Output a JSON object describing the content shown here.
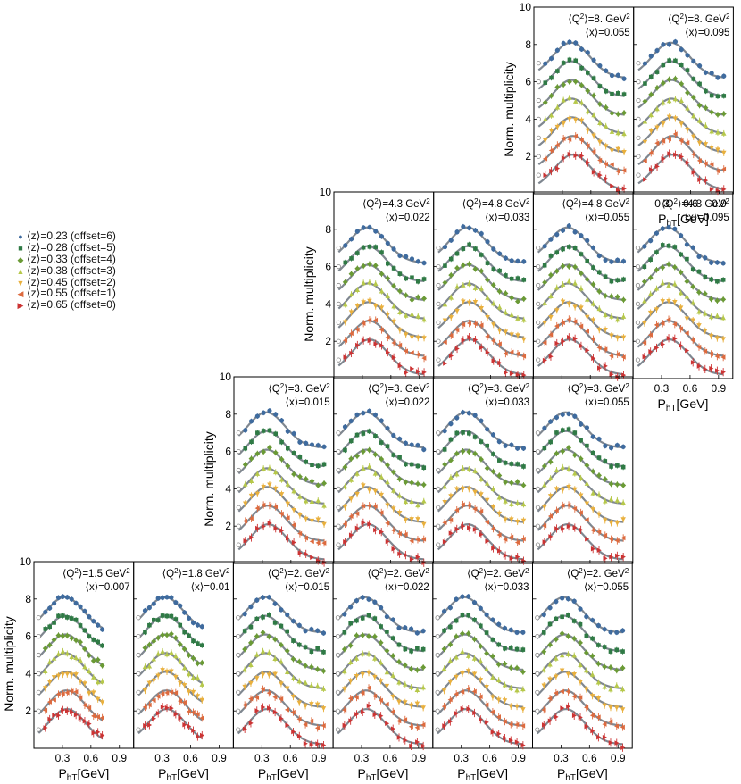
{
  "chart_data": {
    "type": "scatter",
    "description_rows": "Grid of normalized hadron multiplicity panels vs PhT in bins of <Q2> and <x>; each panel shows 7 <z> bins offset vertically with fit curves",
    "y_axis": {
      "label": "Norm. multiplicity",
      "ticks": [
        2,
        4,
        6,
        8,
        10
      ],
      "range": [
        0,
        10
      ]
    },
    "x_axis": {
      "label": "P_hT[GeV]",
      "label_main": "P",
      "label_sub": "hT",
      "label_rest": "[GeV]",
      "ticks": [
        0.3,
        0.6,
        0.9
      ],
      "tick_labels": [
        "0.3",
        "0.6",
        "0.9"
      ],
      "range": [
        0,
        1.05
      ]
    },
    "legend_placement": "left",
    "series": [
      {
        "name": "⟨z⟩=0.23 (offset=6)",
        "z": 0.23,
        "offset": 6,
        "color": "#3f6b9e",
        "marker": "circle"
      },
      {
        "name": "⟨z⟩=0.28 (offset=5)",
        "z": 0.28,
        "offset": 5,
        "color": "#2f7a45",
        "marker": "square"
      },
      {
        "name": "⟨z⟩=0.33 (offset=4)",
        "z": 0.33,
        "offset": 4,
        "color": "#6a9a35",
        "marker": "diamond"
      },
      {
        "name": "⟨z⟩=0.38 (offset=3)",
        "z": 0.38,
        "offset": 3,
        "color": "#b6c84a",
        "marker": "triangle-up"
      },
      {
        "name": "⟨z⟩=0.45 (offset=2)",
        "z": 0.45,
        "offset": 2,
        "color": "#e9b03d",
        "marker": "triangle-down"
      },
      {
        "name": "⟨z⟩=0.55 (offset=1)",
        "z": 0.55,
        "offset": 1,
        "color": "#dd6a3e",
        "marker": "triangle-left"
      },
      {
        "name": "⟨z⟩=0.65 (offset=0)",
        "z": 0.65,
        "offset": 0,
        "color": "#cc3333",
        "marker": "triangle-right"
      }
    ],
    "rows": [
      {
        "panels": [
          {
            "q2": "8.",
            "x": "0.055"
          },
          {
            "q2": "8.",
            "x": "0.095"
          }
        ]
      },
      {
        "panels": [
          {
            "q2": "4.3",
            "x": "0.022"
          },
          {
            "q2": "4.8",
            "x": "0.033"
          },
          {
            "q2": "4.8",
            "x": "0.055"
          },
          {
            "q2": "4.8",
            "x": "0.095"
          }
        ]
      },
      {
        "panels": [
          {
            "q2": "3.",
            "x": "0.015"
          },
          {
            "q2": "3.",
            "x": "0.022"
          },
          {
            "q2": "3.",
            "x": "0.033"
          },
          {
            "q2": "3.",
            "x": "0.055"
          }
        ]
      },
      {
        "panels": [
          {
            "q2": "1.5",
            "x": "0.007"
          },
          {
            "q2": "1.8",
            "x": "0.01"
          },
          {
            "q2": "2.",
            "x": "0.015"
          },
          {
            "q2": "2.",
            "x": "0.022"
          },
          {
            "q2": "2.",
            "x": "0.033"
          },
          {
            "q2": "2.",
            "x": "0.055"
          }
        ]
      }
    ],
    "q2_unit": "GeV",
    "fit_curve_color": "#7f8790"
  }
}
